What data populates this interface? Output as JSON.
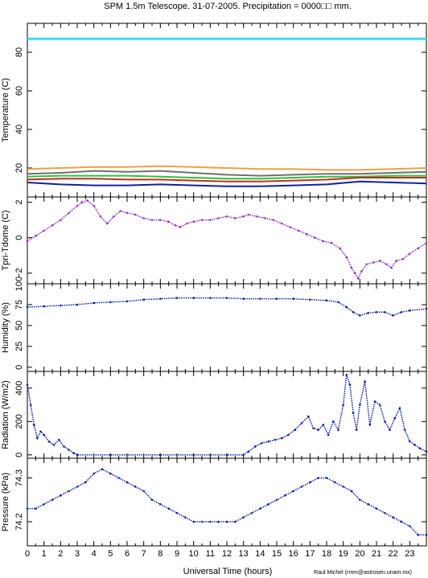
{
  "title": "SPM 1.5m Telescope. 31-07-2005. Precipitation = 0000□□ mm.",
  "credit": "Raul Michel (rmm@astrosen.unam.mx)",
  "colors": {
    "axis": "#000000",
    "cyan": "#33e0f0",
    "orange": "#f0a040",
    "gray": "#707070",
    "green": "#30c040",
    "red": "#c03020",
    "blue": "#1020a0",
    "purple": "#9030c0"
  },
  "chart_data": [
    {
      "type": "line",
      "ylabel": "Temperature (C)",
      "xlim": [
        0,
        24
      ],
      "ylim": [
        5,
        95
      ],
      "yticks": [
        20,
        40,
        60,
        80
      ],
      "series": [
        {
          "color_key": "cyan",
          "x": [
            0,
            24
          ],
          "y": [
            87,
            87
          ]
        },
        {
          "color_key": "orange",
          "x": [
            0,
            2,
            4,
            6,
            8,
            10,
            12,
            14,
            16,
            18,
            20,
            22,
            24
          ],
          "y": [
            19.5,
            20,
            20.5,
            20.5,
            21,
            20.5,
            20,
            19.5,
            19.5,
            19,
            19,
            19.5,
            20
          ]
        },
        {
          "color_key": "gray",
          "x": [
            0,
            2,
            4,
            6,
            8,
            10,
            12,
            14,
            16,
            18,
            20,
            22,
            24
          ],
          "y": [
            17,
            17.5,
            18.5,
            18,
            18.5,
            17.5,
            16.5,
            16,
            16.5,
            17,
            17,
            17.5,
            18
          ]
        },
        {
          "color_key": "green",
          "x": [
            0,
            2,
            4,
            6,
            8,
            10,
            12,
            14,
            16,
            18,
            20,
            22,
            24
          ],
          "y": [
            15.5,
            16,
            16,
            16,
            15.5,
            15,
            14.5,
            14.5,
            15,
            15.5,
            15.5,
            16,
            16
          ]
        },
        {
          "color_key": "red",
          "x": [
            0,
            2,
            4,
            6,
            8,
            10,
            12,
            14,
            16,
            18,
            20,
            22,
            24
          ],
          "y": [
            14,
            14.5,
            14.5,
            14,
            14,
            13.5,
            13,
            13,
            13.5,
            14,
            15,
            15,
            15
          ]
        },
        {
          "color_key": "blue",
          "x": [
            0,
            2,
            4,
            6,
            8,
            10,
            12,
            14,
            16,
            18,
            20,
            22,
            24
          ],
          "y": [
            12.5,
            11.5,
            11,
            11,
            11.5,
            11,
            10.5,
            10.5,
            11,
            11.5,
            13,
            12.5,
            12
          ]
        }
      ]
    },
    {
      "type": "scatter",
      "ylabel": "Tpri-Tdome (C)",
      "xlim": [
        0,
        24
      ],
      "ylim": [
        -2.6,
        2.3
      ],
      "yticks": [
        -2,
        0,
        2
      ],
      "ytick_labels": [
        "−2",
        "0",
        "2"
      ],
      "series": [
        {
          "color_key": "purple",
          "x": [
            0,
            0.5,
            1,
            1.5,
            2,
            2.5,
            3,
            3.3,
            3.6,
            4,
            4.4,
            4.8,
            5.2,
            5.6,
            6,
            6.5,
            7,
            7.5,
            8,
            8.5,
            8.9,
            9.2,
            9.6,
            10,
            10.5,
            11,
            11.5,
            12,
            12.5,
            13,
            13.3,
            13.8,
            14.3,
            14.8,
            15.3,
            15.8,
            16.3,
            16.8,
            17.3,
            17.8,
            18.3,
            18.8,
            19.2,
            19.5,
            19.7,
            19.9,
            20.1,
            20.4,
            20.8,
            21.2,
            21.6,
            21.9,
            22.2,
            22.6,
            23,
            23.5,
            24
          ],
          "y": [
            -0.2,
            0.1,
            0.4,
            0.7,
            1.0,
            1.4,
            1.8,
            2.0,
            2.1,
            1.8,
            1.2,
            0.8,
            1.2,
            1.5,
            1.4,
            1.3,
            1.1,
            1.0,
            1.0,
            0.9,
            0.7,
            0.6,
            0.8,
            0.9,
            1.0,
            1.0,
            1.1,
            1.2,
            1.1,
            1.2,
            1.3,
            1.2,
            1.1,
            1.0,
            0.8,
            0.6,
            0.4,
            0.2,
            0.0,
            -0.2,
            -0.3,
            -0.6,
            -1.1,
            -1.7,
            -2.0,
            -2.3,
            -1.9,
            -1.5,
            -1.4,
            -1.3,
            -1.5,
            -1.7,
            -1.3,
            -1.2,
            -0.9,
            -0.6,
            -0.3
          ]
        }
      ]
    },
    {
      "type": "scatter",
      "ylabel": "Humidity (%)",
      "xlim": [
        0,
        24
      ],
      "ylim": [
        -5,
        100
      ],
      "yticks": [
        0,
        25,
        50,
        75,
        100
      ],
      "series": [
        {
          "color_key": "blue",
          "x": [
            0,
            1,
            2,
            3,
            4,
            5,
            6,
            7,
            8,
            9,
            10,
            11,
            12,
            13,
            14,
            15,
            16,
            17,
            18,
            18.7,
            19.2,
            19.6,
            20,
            20.5,
            21,
            21.5,
            22,
            22.5,
            23,
            24
          ],
          "y": [
            72,
            73,
            74,
            75,
            77,
            78,
            79,
            81,
            82,
            83,
            83,
            83,
            83,
            82,
            82,
            82,
            82,
            81,
            80,
            78,
            72,
            66,
            62,
            65,
            66,
            66,
            62,
            66,
            68,
            70
          ]
        }
      ]
    },
    {
      "type": "scatter",
      "ylabel": "Radiation (W/m2)",
      "xlim": [
        0,
        24
      ],
      "ylim": [
        -20,
        500
      ],
      "yticks": [
        0,
        200,
        400
      ],
      "series": [
        {
          "color_key": "blue",
          "x": [
            0,
            0.2,
            0.4,
            0.6,
            0.8,
            1.0,
            1.3,
            1.6,
            1.9,
            2.2,
            2.5,
            2.8,
            3,
            5,
            8,
            10,
            12,
            13,
            13.3,
            13.7,
            14.1,
            14.5,
            14.9,
            15.3,
            15.7,
            16.1,
            16.5,
            16.9,
            17.2,
            17.5,
            17.8,
            18.1,
            18.4,
            18.7,
            19.0,
            19.2,
            19.4,
            19.6,
            19.8,
            20.0,
            20.3,
            20.6,
            20.9,
            21.2,
            21.5,
            21.8,
            22.1,
            22.4,
            22.7,
            23.0,
            23.3,
            23.6,
            24
          ],
          "y": [
            420,
            300,
            180,
            100,
            140,
            120,
            80,
            60,
            90,
            50,
            30,
            10,
            0,
            0,
            0,
            0,
            0,
            0,
            20,
            50,
            70,
            80,
            90,
            100,
            120,
            150,
            190,
            230,
            160,
            150,
            180,
            120,
            200,
            150,
            300,
            480,
            420,
            250,
            150,
            300,
            440,
            180,
            320,
            300,
            200,
            150,
            220,
            280,
            150,
            80,
            60,
            40,
            20
          ]
        }
      ]
    },
    {
      "type": "scatter",
      "ylabel": "Pressure (kPa)",
      "xlim": [
        0,
        24
      ],
      "ylim": [
        74.145,
        74.345
      ],
      "yticks": [
        74.2,
        74.3
      ],
      "ytick_labels": [
        "74.2",
        "74.3"
      ],
      "xticks": [
        0,
        1,
        2,
        3,
        4,
        5,
        6,
        7,
        8,
        9,
        10,
        11,
        12,
        13,
        14,
        15,
        16,
        17,
        18,
        19,
        20,
        21,
        22,
        23
      ],
      "xlabel": "Universal Time (hours)",
      "series": [
        {
          "color_key": "blue",
          "x": [
            0,
            0.5,
            1,
            1.5,
            2,
            2.5,
            3,
            3.5,
            4,
            4.5,
            5,
            5.5,
            6,
            6.5,
            7,
            7.5,
            8,
            8.5,
            9,
            9.5,
            10,
            10.5,
            11,
            11.5,
            12,
            12.5,
            13,
            13.5,
            14,
            14.5,
            15,
            15.5,
            16,
            16.5,
            17,
            17.5,
            18,
            18.5,
            19,
            19.5,
            20,
            20.5,
            21,
            21.5,
            22,
            22.5,
            23,
            23.5,
            24
          ],
          "y": [
            74.23,
            74.23,
            74.24,
            74.25,
            74.26,
            74.27,
            74.28,
            74.29,
            74.31,
            74.32,
            74.31,
            74.3,
            74.29,
            74.28,
            74.27,
            74.25,
            74.24,
            74.23,
            74.22,
            74.21,
            74.2,
            74.2,
            74.2,
            74.2,
            74.2,
            74.2,
            74.21,
            74.22,
            74.23,
            74.24,
            74.25,
            74.26,
            74.27,
            74.28,
            74.29,
            74.3,
            74.3,
            74.29,
            74.28,
            74.27,
            74.25,
            74.24,
            74.23,
            74.22,
            74.21,
            74.2,
            74.19,
            74.17,
            74.17
          ]
        }
      ]
    }
  ]
}
